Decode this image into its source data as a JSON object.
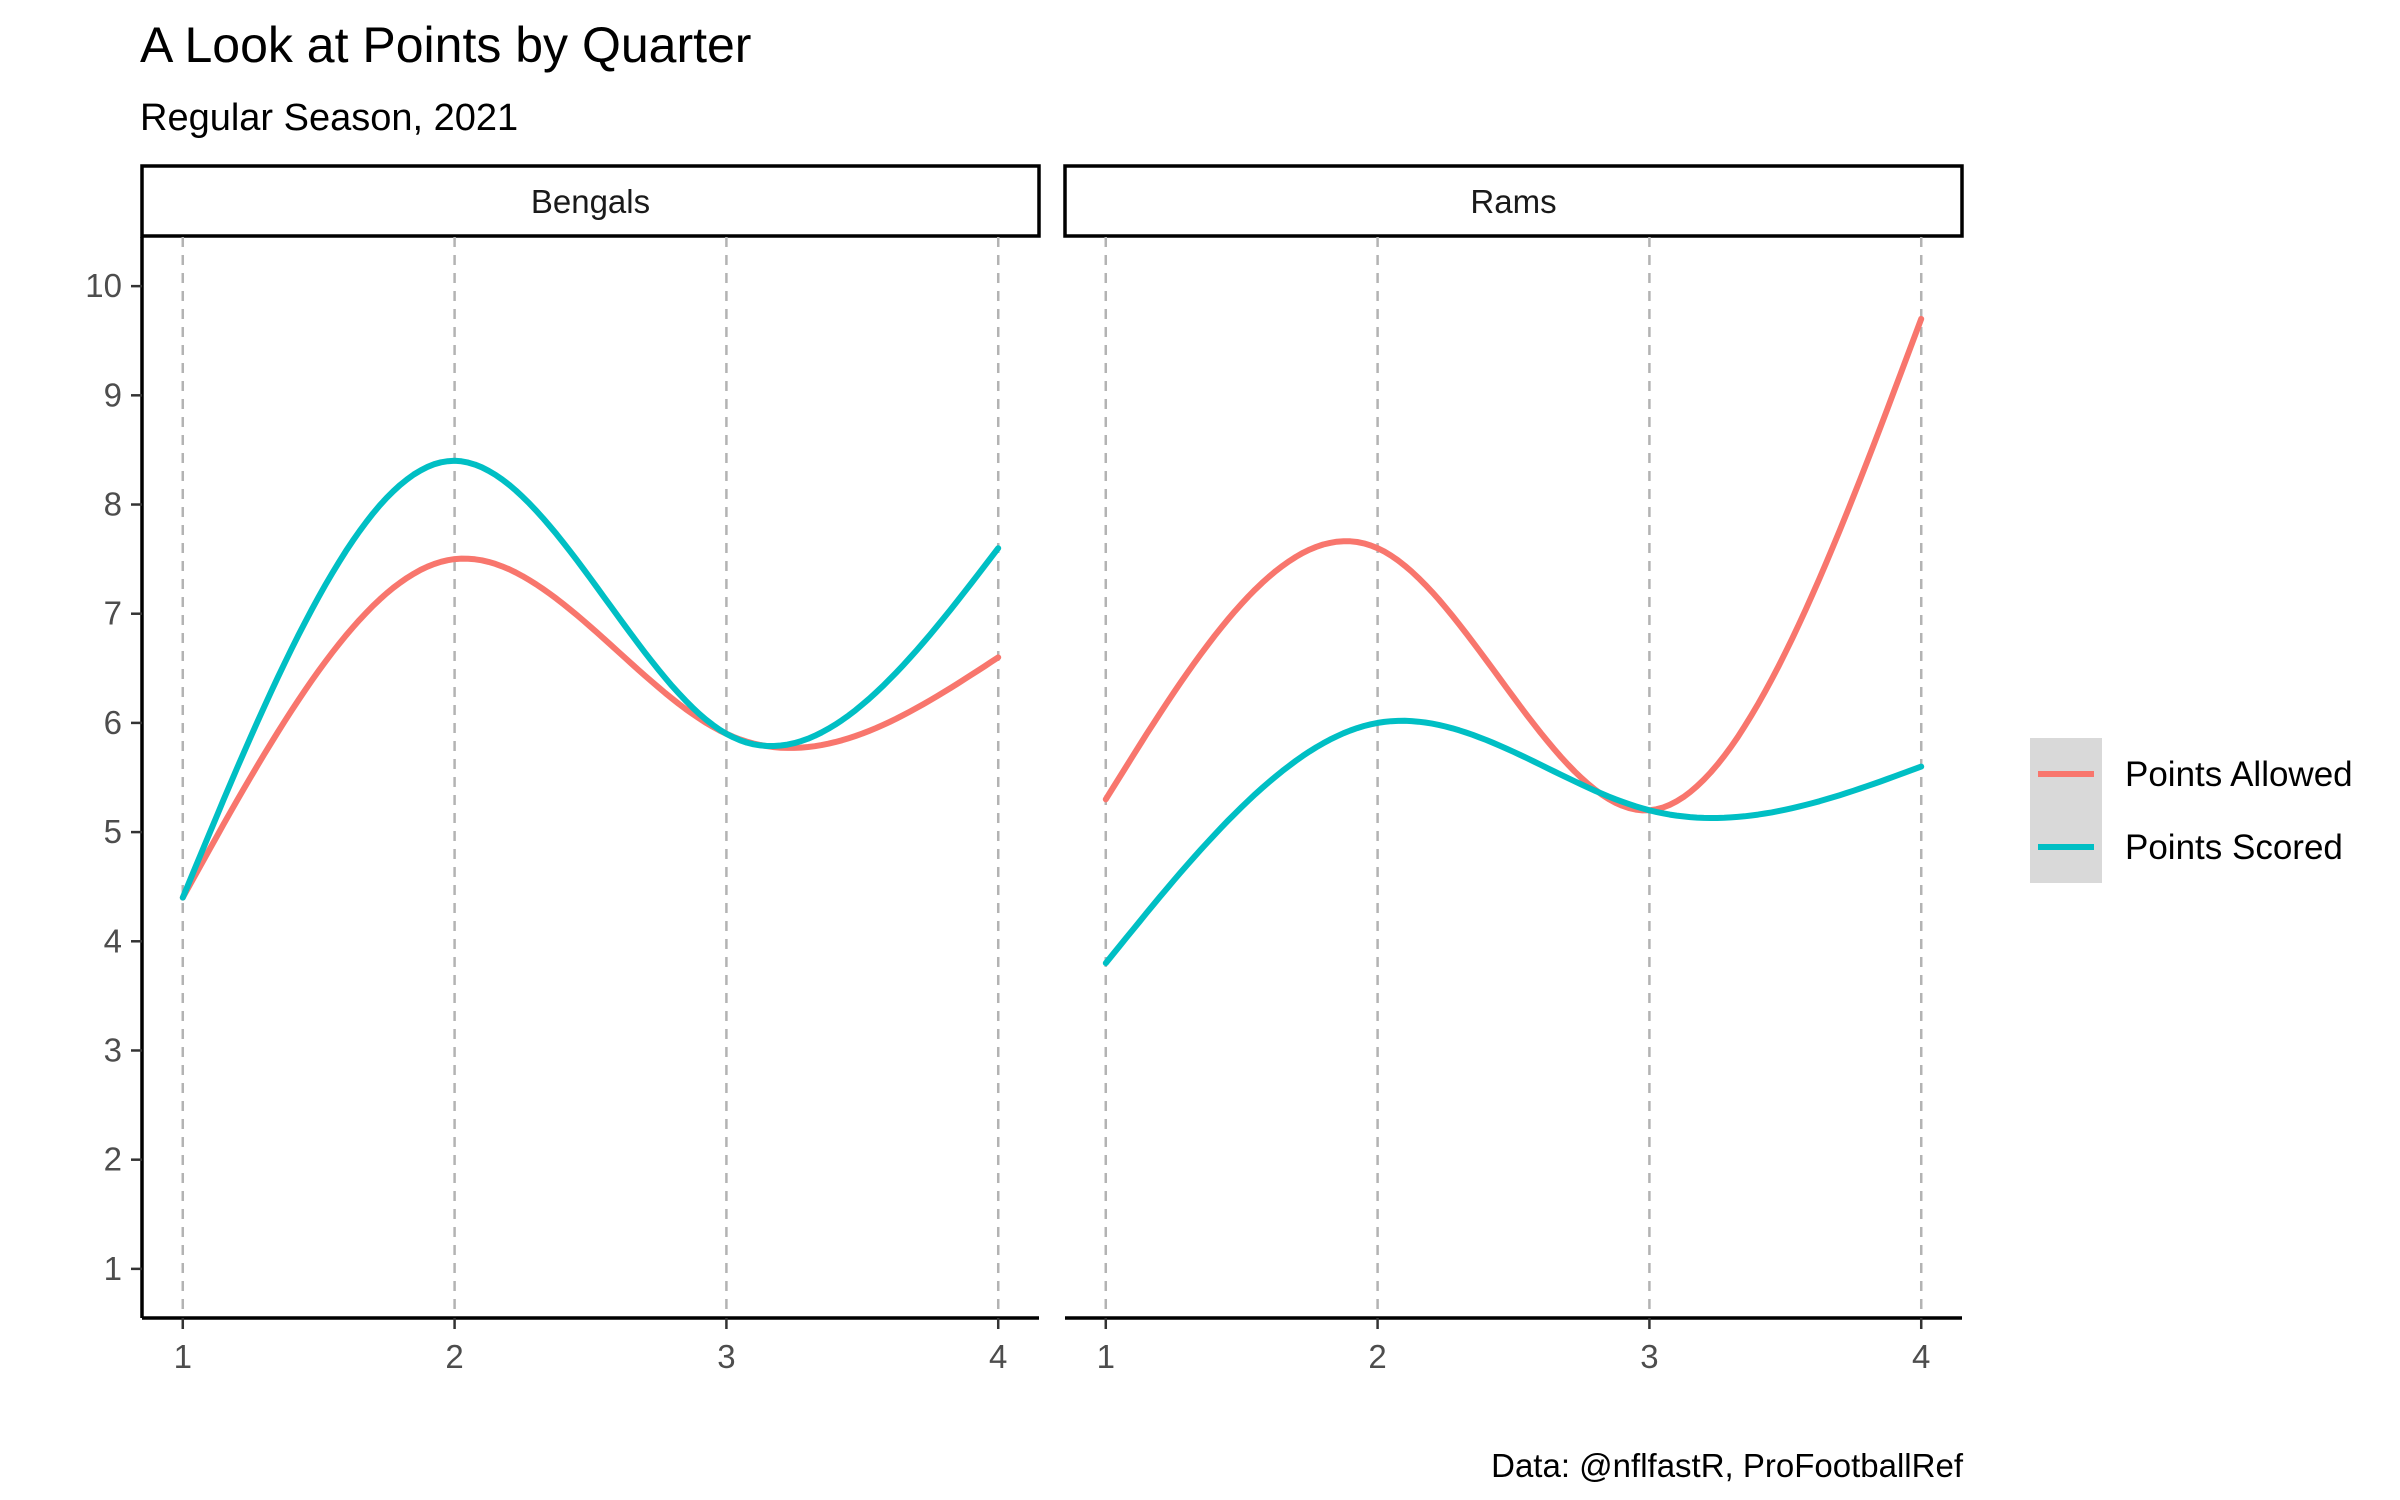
{
  "chart_data": {
    "type": "line",
    "title": "A Look at Points by Quarter",
    "subtitle": "Regular Season, 2021",
    "caption": "Data: @nflfastR, ProFootballRef",
    "xlabel": "",
    "ylabel": "",
    "x": [
      1,
      2,
      3,
      4
    ],
    "xlim": [
      0.85,
      4.15
    ],
    "ylim": [
      0.55,
      10.45
    ],
    "x_ticks": [
      "1",
      "2",
      "3",
      "4"
    ],
    "y_ticks": [
      "1",
      "2",
      "3",
      "4",
      "5",
      "6",
      "7",
      "8",
      "9",
      "10"
    ],
    "grid": "vertical dashed lines at x ticks",
    "legend_position": "right",
    "series_colors": {
      "Points Allowed": "#F8766D",
      "Points Scored": "#00BFC4"
    },
    "panels": [
      {
        "label": "Bengals",
        "series": [
          {
            "name": "Points Allowed",
            "values": [
              4.4,
              7.5,
              5.9,
              6.6
            ]
          },
          {
            "name": "Points Scored",
            "values": [
              4.4,
              8.4,
              5.9,
              7.6
            ]
          }
        ]
      },
      {
        "label": "Rams",
        "series": [
          {
            "name": "Points Allowed",
            "values": [
              5.3,
              7.6,
              5.2,
              9.7
            ]
          },
          {
            "name": "Points Scored",
            "values": [
              3.8,
              6.0,
              5.2,
              5.6
            ]
          }
        ]
      }
    ],
    "legend": [
      "Points Allowed",
      "Points Scored"
    ]
  }
}
